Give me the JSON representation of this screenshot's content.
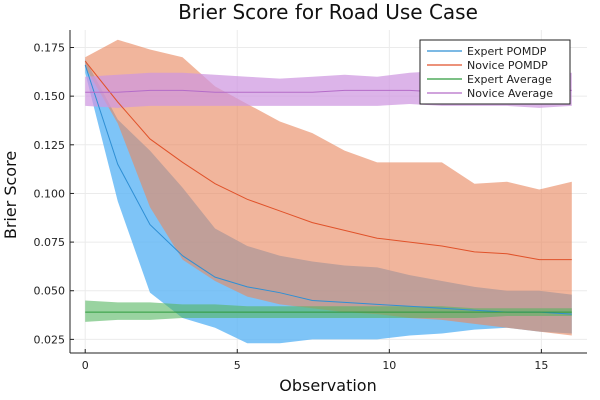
{
  "chart_data": {
    "type": "line",
    "title": "Brier Score for Road Use Case",
    "xlabel": "Observation",
    "ylabel": "Brier Score",
    "xlim": [
      -0.5,
      16.5
    ],
    "ylim": [
      0.018,
      0.184
    ],
    "xticks": [
      0,
      5,
      10,
      15
    ],
    "yticks": [
      0.025,
      0.05,
      0.075,
      0.1,
      0.125,
      0.15,
      0.175
    ],
    "ytick_labels": [
      "0.025",
      "0.050",
      "0.075",
      "0.100",
      "0.125",
      "0.150",
      "0.175"
    ],
    "grid": true,
    "legend_position": "top-right",
    "x": [
      0,
      1.07,
      2.13,
      3.2,
      4.27,
      5.33,
      6.4,
      7.47,
      8.53,
      9.6,
      10.67,
      11.73,
      12.8,
      13.87,
      14.93,
      16
    ],
    "series": [
      {
        "name": "Expert POMDP",
        "color": "#2f8fd4",
        "band_color": "#5ab4f5",
        "band_opacity": 0.78,
        "mean": [
          0.166,
          0.115,
          0.084,
          0.068,
          0.057,
          0.052,
          0.049,
          0.045,
          0.044,
          0.043,
          0.042,
          0.041,
          0.04,
          0.039,
          0.039,
          0.038
        ],
        "lower": [
          0.162,
          0.096,
          0.049,
          0.036,
          0.031,
          0.023,
          0.023,
          0.025,
          0.025,
          0.025,
          0.027,
          0.028,
          0.03,
          0.031,
          0.029,
          0.028
        ],
        "upper": [
          0.169,
          0.138,
          0.122,
          0.103,
          0.082,
          0.073,
          0.068,
          0.065,
          0.063,
          0.062,
          0.058,
          0.055,
          0.052,
          0.05,
          0.05,
          0.048
        ]
      },
      {
        "name": "Novice POMDP",
        "color": "#e0522a",
        "band_color": "#e88860",
        "band_opacity": 0.62,
        "mean": [
          0.168,
          0.147,
          0.128,
          0.116,
          0.105,
          0.097,
          0.091,
          0.085,
          0.081,
          0.077,
          0.075,
          0.073,
          0.07,
          0.069,
          0.066,
          0.066
        ],
        "lower": [
          0.165,
          0.136,
          0.093,
          0.066,
          0.055,
          0.047,
          0.043,
          0.041,
          0.039,
          0.038,
          0.036,
          0.035,
          0.033,
          0.031,
          0.029,
          0.027
        ],
        "upper": [
          0.17,
          0.179,
          0.174,
          0.17,
          0.155,
          0.146,
          0.137,
          0.131,
          0.122,
          0.116,
          0.116,
          0.116,
          0.105,
          0.106,
          0.102,
          0.106
        ]
      },
      {
        "name": "Expert Average",
        "color": "#2e9a3c",
        "band_color": "#55b660",
        "band_opacity": 0.6,
        "mean": [
          0.039,
          0.039,
          0.039,
          0.039,
          0.039,
          0.039,
          0.039,
          0.039,
          0.039,
          0.039,
          0.039,
          0.039,
          0.039,
          0.039,
          0.039,
          0.039
        ],
        "lower": [
          0.034,
          0.035,
          0.035,
          0.036,
          0.036,
          0.036,
          0.036,
          0.036,
          0.036,
          0.036,
          0.036,
          0.036,
          0.036,
          0.037,
          0.037,
          0.037
        ],
        "upper": [
          0.045,
          0.044,
          0.044,
          0.043,
          0.043,
          0.042,
          0.042,
          0.042,
          0.042,
          0.042,
          0.042,
          0.042,
          0.041,
          0.041,
          0.041,
          0.041
        ]
      },
      {
        "name": "Novice Average",
        "color": "#b46cc8",
        "band_color": "#cf97e0",
        "band_opacity": 0.72,
        "mean": [
          0.152,
          0.152,
          0.153,
          0.153,
          0.152,
          0.152,
          0.152,
          0.152,
          0.153,
          0.153,
          0.153,
          0.152,
          0.152,
          0.152,
          0.153,
          0.153
        ],
        "lower": [
          0.145,
          0.144,
          0.145,
          0.145,
          0.145,
          0.145,
          0.145,
          0.145,
          0.145,
          0.145,
          0.146,
          0.145,
          0.145,
          0.145,
          0.144,
          0.145
        ],
        "upper": [
          0.16,
          0.161,
          0.162,
          0.162,
          0.161,
          0.16,
          0.159,
          0.16,
          0.161,
          0.16,
          0.162,
          0.163,
          0.16,
          0.161,
          0.161,
          0.162
        ]
      }
    ]
  }
}
